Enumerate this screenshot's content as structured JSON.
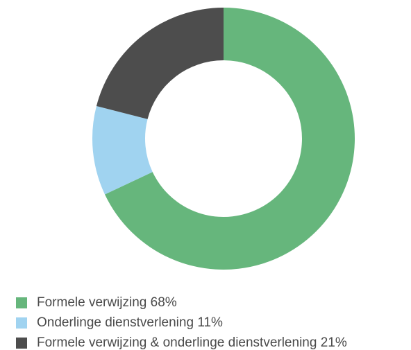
{
  "chart_data": {
    "type": "pie",
    "categories": [
      "Formele verwijzing",
      "Onderlinge dienstverlening",
      "Formele verwijzing & onderlinge dienstverlening"
    ],
    "values": [
      68,
      11,
      21
    ],
    "value_labels": [
      "68%",
      "11%",
      "21%"
    ],
    "colors": [
      "#66b67c",
      "#a0d3f0",
      "#4d4d4d"
    ],
    "donut": true,
    "legend": "bottom-left"
  }
}
